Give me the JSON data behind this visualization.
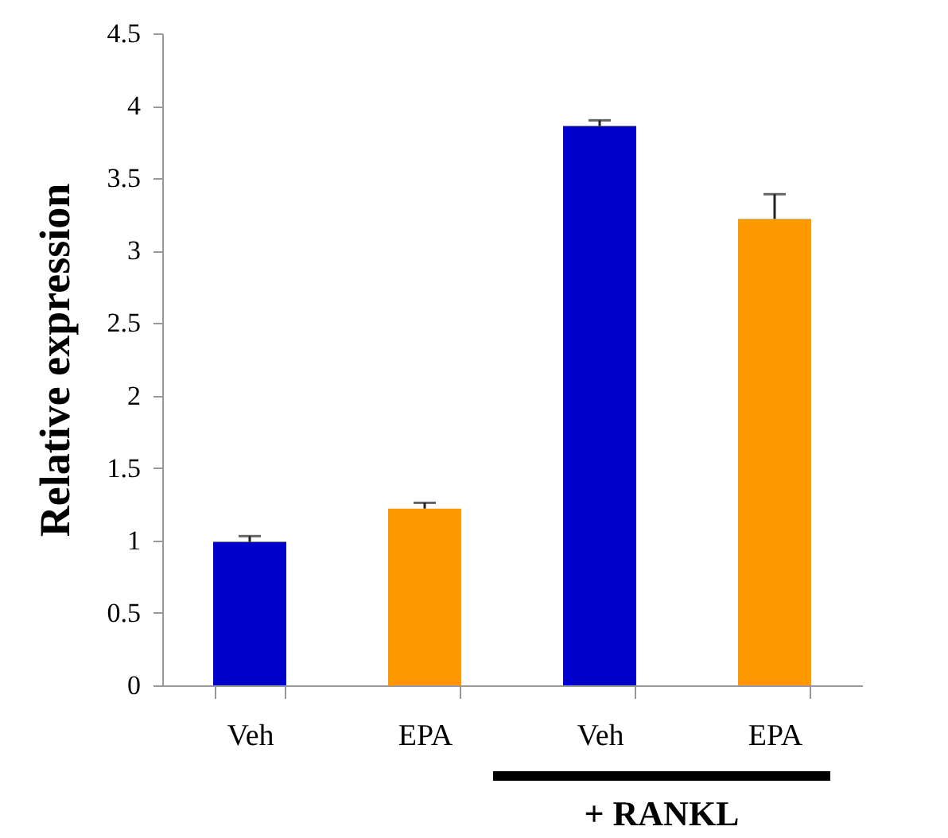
{
  "chart_data": {
    "type": "bar",
    "categories": [
      "Veh",
      "EPA",
      "Veh",
      "EPA"
    ],
    "values": [
      0.99,
      1.22,
      3.86,
      3.22
    ],
    "colors": [
      "#0000cc",
      "#ff9900",
      "#0000cc",
      "#ff9900"
    ],
    "errors": [
      [
        0.99,
        1.03
      ],
      [
        1.22,
        1.26
      ],
      [
        3.86,
        3.9
      ],
      [
        3.22,
        3.39
      ]
    ],
    "ylabel": "Relative expression",
    "ylim": [
      0,
      4.5
    ],
    "yticks": [
      0,
      0.5,
      1,
      1.5,
      2,
      2.5,
      3,
      3.5,
      4,
      4.5
    ],
    "annotations": [
      "+ RANKL"
    ],
    "grid": false
  }
}
